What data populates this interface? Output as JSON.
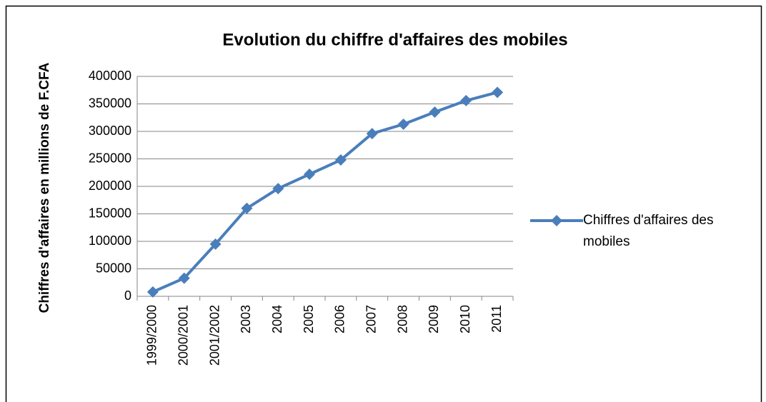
{
  "chart_data": {
    "type": "line",
    "title": "Evolution du chiffre d'affaires des mobiles",
    "y_label": "Chiffres d'affaires en millions de F.CFA",
    "categories": [
      "1999/2000",
      "2000/2001",
      "2001/2002",
      "2003",
      "2004",
      "2005",
      "2006",
      "2007",
      "2008",
      "2009",
      "2010",
      "2011"
    ],
    "series": [
      {
        "name": "Chiffres d'affaires des mobiles",
        "color": "#4a7ebb",
        "values": [
          8000,
          33000,
          95000,
          160000,
          196000,
          222000,
          248000,
          296000,
          313000,
          335000,
          356000,
          371000
        ]
      }
    ],
    "ylim": [
      0,
      400000
    ],
    "yticks": [
      0,
      50000,
      100000,
      150000,
      200000,
      250000,
      300000,
      350000,
      400000
    ],
    "grid": true,
    "legend": "right"
  }
}
